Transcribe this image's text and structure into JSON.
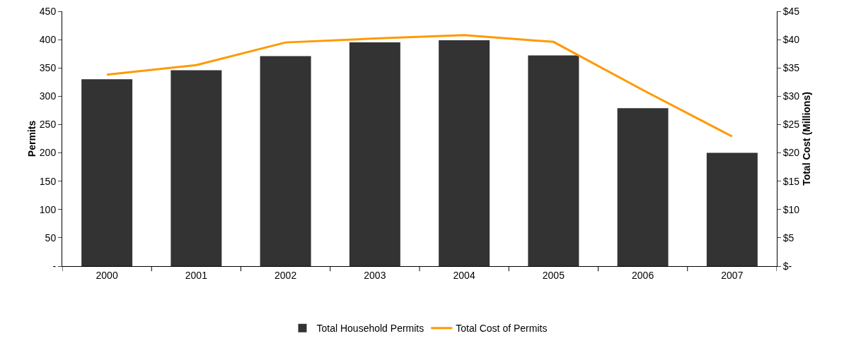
{
  "chart_data": {
    "type": "bar",
    "categories": [
      "2000",
      "2001",
      "2002",
      "2003",
      "2004",
      "2005",
      "2006",
      "2007"
    ],
    "ylabel": "Permits",
    "y2label": "Total Cost (Millions)",
    "series": [
      {
        "name": "Total Household Permits",
        "color": "#333333",
        "values": [
          330,
          346,
          371,
          395,
          399,
          372,
          279,
          200
        ]
      },
      {
        "name": "Total Cost of Permits",
        "type": "line",
        "axis": "y2",
        "color": "#ff9900",
        "values": [
          33.8,
          35.5,
          39.5,
          40.2,
          40.8,
          39.6,
          31.1,
          22.9
        ]
      }
    ],
    "ylim": [
      0,
      450
    ],
    "yticks": [
      {
        "value": 0,
        "label": "-"
      },
      50,
      100,
      150,
      200,
      250,
      300,
      350,
      400,
      450
    ],
    "y2lim": [
      0,
      45
    ],
    "y2ticks": [
      {
        "value": 0,
        "label": "$-"
      },
      {
        "value": 5,
        "label": "$5"
      },
      {
        "value": 10,
        "label": "$10"
      },
      {
        "value": 15,
        "label": "$15"
      },
      {
        "value": 20,
        "label": "$20"
      },
      {
        "value": 25,
        "label": "$25"
      },
      {
        "value": 30,
        "label": "$30"
      },
      {
        "value": 35,
        "label": "$35"
      },
      {
        "value": 40,
        "label": "$40"
      },
      {
        "value": 45,
        "label": "$45"
      }
    ],
    "grid": false,
    "legend": "bottom",
    "marker": "none",
    "line_style": "solid"
  }
}
